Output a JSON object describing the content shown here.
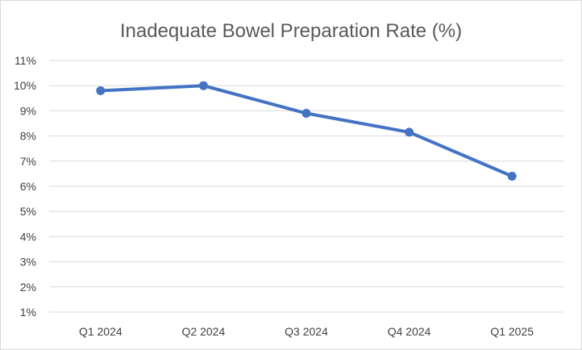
{
  "chart_data": {
    "type": "line",
    "title": "Inadequate Bowel Preparation Rate (%)",
    "xlabel": "",
    "ylabel": "",
    "categories": [
      "Q1 2024",
      "Q2 2024",
      "Q3 2024",
      "Q4 2024",
      "Q1 2025"
    ],
    "series": [
      {
        "values": [
          9.8,
          10.0,
          8.9,
          8.15,
          6.4
        ]
      }
    ],
    "ylim": [
      1,
      11
    ],
    "yticks": [
      "1%",
      "2%",
      "3%",
      "4%",
      "5%",
      "6%",
      "7%",
      "8%",
      "9%",
      "10%",
      "11%"
    ],
    "grid": true,
    "legend": "none",
    "colors": {
      "line": "#4472c4",
      "grid": "#d9d9d9",
      "text": "#595959"
    }
  }
}
